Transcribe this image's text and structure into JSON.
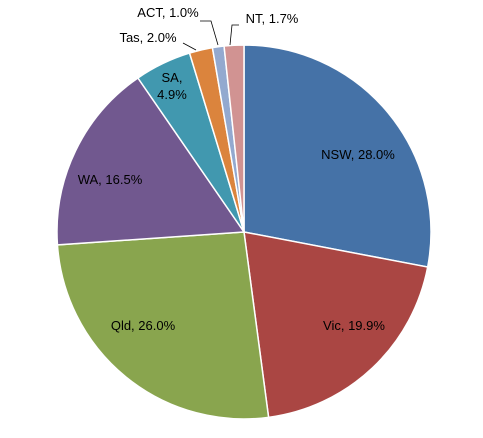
{
  "chart_data": {
    "type": "pie",
    "title": "",
    "start_angle_deg": 0,
    "direction": "clockwise",
    "slices": [
      {
        "name": "NSW",
        "label": "NSW, 28.0%",
        "value": 28.0,
        "color": "#4572A7"
      },
      {
        "name": "Vic",
        "label": "Vic, 19.9%",
        "value": 19.9,
        "color": "#AA4643"
      },
      {
        "name": "Qld",
        "label": "Qld, 26.0%",
        "value": 26.0,
        "color": "#89A54E"
      },
      {
        "name": "WA",
        "label": "WA, 16.5%",
        "value": 16.5,
        "color": "#71588F"
      },
      {
        "name": "SA",
        "label_lines": [
          "SA,",
          "4.9%"
        ],
        "value": 4.9,
        "color": "#4198AF"
      },
      {
        "name": "Tas",
        "label": "Tas, 2.0%",
        "value": 2.0,
        "color": "#DB843D"
      },
      {
        "name": "ACT",
        "label": "ACT, 1.0%",
        "value": 1.0,
        "color": "#93A9CF"
      },
      {
        "name": "NT",
        "label": "NT, 1.7%",
        "value": 1.7,
        "color": "#D19392"
      }
    ]
  }
}
